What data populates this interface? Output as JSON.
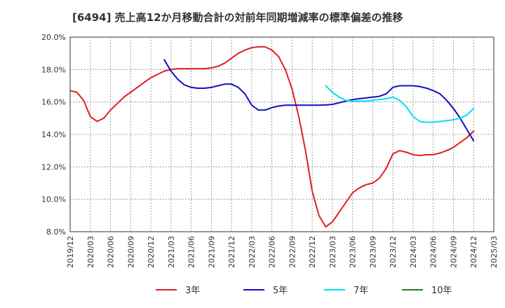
{
  "chart_data": {
    "type": "line",
    "title": "[6494]  売上高12か月移動合計の対前年同期増減率の標準偏差の推移",
    "xlabel": "",
    "ylabel": "",
    "x_range": [
      "2019/12",
      "2025/03"
    ],
    "y_range": [
      8.0,
      20.0
    ],
    "y_ticks": [
      "20.0%",
      "18.0%",
      "16.0%",
      "14.0%",
      "12.0%",
      "10.0%",
      "8.0%"
    ],
    "x_ticks": [
      "2019/12",
      "2020/03",
      "2020/06",
      "2020/09",
      "2020/12",
      "2021/03",
      "2021/06",
      "2021/09",
      "2021/12",
      "2022/03",
      "2022/06",
      "2022/09",
      "2022/12",
      "2023/03",
      "2023/06",
      "2023/09",
      "2023/12",
      "2024/03",
      "2024/06",
      "2024/09",
      "2024/12",
      "2025/03"
    ],
    "grid": true,
    "legend_position": "bottom",
    "series": [
      {
        "name": "3年",
        "color": "#e02020",
        "points": [
          [
            "2019/12",
            16.7
          ],
          [
            "2020/01",
            16.6
          ],
          [
            "2020/02",
            16.1
          ],
          [
            "2020/03",
            15.1
          ],
          [
            "2020/04",
            14.8
          ],
          [
            "2020/05",
            15.0
          ],
          [
            "2020/06",
            15.5
          ],
          [
            "2020/07",
            15.9
          ],
          [
            "2020/08",
            16.3
          ],
          [
            "2020/09",
            16.6
          ],
          [
            "2020/10",
            16.9
          ],
          [
            "2020/11",
            17.2
          ],
          [
            "2020/12",
            17.5
          ],
          [
            "2021/01",
            17.7
          ],
          [
            "2021/02",
            17.9
          ],
          [
            "2021/03",
            18.0
          ],
          [
            "2021/04",
            18.05
          ],
          [
            "2021/05",
            18.05
          ],
          [
            "2021/06",
            18.05
          ],
          [
            "2021/07",
            18.05
          ],
          [
            "2021/08",
            18.05
          ],
          [
            "2021/09",
            18.1
          ],
          [
            "2021/10",
            18.2
          ],
          [
            "2021/11",
            18.4
          ],
          [
            "2021/12",
            18.7
          ],
          [
            "2022/01",
            19.0
          ],
          [
            "2022/02",
            19.2
          ],
          [
            "2022/03",
            19.35
          ],
          [
            "2022/04",
            19.4
          ],
          [
            "2022/05",
            19.4
          ],
          [
            "2022/06",
            19.2
          ],
          [
            "2022/07",
            18.8
          ],
          [
            "2022/08",
            18.0
          ],
          [
            "2022/09",
            16.8
          ],
          [
            "2022/10",
            15.1
          ],
          [
            "2022/11",
            13.0
          ],
          [
            "2022/12",
            10.5
          ],
          [
            "2023/01",
            9.0
          ],
          [
            "2023/02",
            8.3
          ],
          [
            "2023/03",
            8.6
          ],
          [
            "2023/04",
            9.2
          ],
          [
            "2023/05",
            9.8
          ],
          [
            "2023/06",
            10.4
          ],
          [
            "2023/07",
            10.7
          ],
          [
            "2023/08",
            10.9
          ],
          [
            "2023/09",
            11.0
          ],
          [
            "2023/10",
            11.3
          ],
          [
            "2023/11",
            11.9
          ],
          [
            "2023/12",
            12.8
          ],
          [
            "2024/01",
            13.0
          ],
          [
            "2024/02",
            12.9
          ],
          [
            "2024/03",
            12.75
          ],
          [
            "2024/04",
            12.7
          ],
          [
            "2024/05",
            12.75
          ],
          [
            "2024/06",
            12.75
          ],
          [
            "2024/07",
            12.85
          ],
          [
            "2024/08",
            13.0
          ],
          [
            "2024/09",
            13.2
          ],
          [
            "2024/10",
            13.5
          ],
          [
            "2024/11",
            13.8
          ],
          [
            "2024/12",
            14.2
          ]
        ]
      },
      {
        "name": "5年",
        "color": "#1010c0",
        "points": [
          [
            "2021/02",
            18.6
          ],
          [
            "2021/03",
            17.9
          ],
          [
            "2021/04",
            17.4
          ],
          [
            "2021/05",
            17.05
          ],
          [
            "2021/06",
            16.9
          ],
          [
            "2021/07",
            16.85
          ],
          [
            "2021/08",
            16.85
          ],
          [
            "2021/09",
            16.9
          ],
          [
            "2021/10",
            17.0
          ],
          [
            "2021/11",
            17.1
          ],
          [
            "2021/12",
            17.1
          ],
          [
            "2022/01",
            16.9
          ],
          [
            "2022/02",
            16.5
          ],
          [
            "2022/03",
            15.8
          ],
          [
            "2022/04",
            15.5
          ],
          [
            "2022/05",
            15.5
          ],
          [
            "2022/06",
            15.65
          ],
          [
            "2022/07",
            15.75
          ],
          [
            "2022/08",
            15.8
          ],
          [
            "2022/09",
            15.8
          ],
          [
            "2022/10",
            15.8
          ],
          [
            "2022/11",
            15.8
          ],
          [
            "2022/12",
            15.8
          ],
          [
            "2023/01",
            15.8
          ],
          [
            "2023/02",
            15.82
          ],
          [
            "2023/03",
            15.85
          ],
          [
            "2023/04",
            15.95
          ],
          [
            "2023/05",
            16.05
          ],
          [
            "2023/06",
            16.15
          ],
          [
            "2023/07",
            16.2
          ],
          [
            "2023/08",
            16.25
          ],
          [
            "2023/09",
            16.3
          ],
          [
            "2023/10",
            16.35
          ],
          [
            "2023/11",
            16.5
          ],
          [
            "2023/12",
            16.9
          ],
          [
            "2024/01",
            17.0
          ],
          [
            "2024/02",
            17.0
          ],
          [
            "2024/03",
            17.0
          ],
          [
            "2024/04",
            16.95
          ],
          [
            "2024/05",
            16.85
          ],
          [
            "2024/06",
            16.7
          ],
          [
            "2024/07",
            16.5
          ],
          [
            "2024/08",
            16.1
          ],
          [
            "2024/09",
            15.6
          ],
          [
            "2024/10",
            15.0
          ],
          [
            "2024/11",
            14.3
          ],
          [
            "2024/12",
            13.6
          ]
        ]
      },
      {
        "name": "7年",
        "color": "#00e0f0",
        "points": [
          [
            "2023/02",
            17.0
          ],
          [
            "2023/03",
            16.6
          ],
          [
            "2023/04",
            16.3
          ],
          [
            "2023/05",
            16.1
          ],
          [
            "2023/06",
            16.05
          ],
          [
            "2023/07",
            16.05
          ],
          [
            "2023/08",
            16.05
          ],
          [
            "2023/09",
            16.1
          ],
          [
            "2023/10",
            16.15
          ],
          [
            "2023/11",
            16.2
          ],
          [
            "2023/12",
            16.3
          ],
          [
            "2024/01",
            16.1
          ],
          [
            "2024/02",
            15.7
          ],
          [
            "2024/03",
            15.1
          ],
          [
            "2024/04",
            14.8
          ],
          [
            "2024/05",
            14.75
          ],
          [
            "2024/06",
            14.75
          ],
          [
            "2024/07",
            14.8
          ],
          [
            "2024/08",
            14.85
          ],
          [
            "2024/09",
            14.9
          ],
          [
            "2024/10",
            15.0
          ],
          [
            "2024/11",
            15.2
          ],
          [
            "2024/12",
            15.6
          ]
        ]
      },
      {
        "name": "10年",
        "color": "#208020",
        "points": []
      }
    ]
  }
}
